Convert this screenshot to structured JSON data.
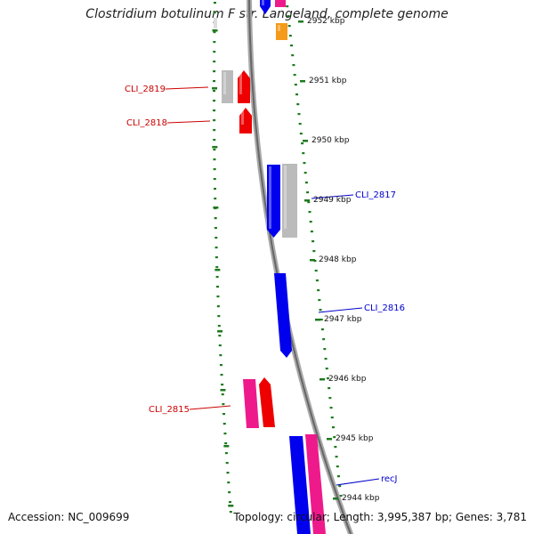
{
  "title": "Clostridium botulinum F str. Langeland, complete genome",
  "footer": {
    "accession": "Accession: NC_009699",
    "summary": "Topology: circular; Length: 3,995,387 bp; Genes: 3,781"
  },
  "colors": {
    "backbone": "#888888",
    "ruler": "#1e7a1e",
    "blue": "#0000ee",
    "red": "#ee0000",
    "pink": "#ee1a8c",
    "gray": "#bbbbbb",
    "orange": "#f59a1a",
    "label_red": "#cc0000",
    "label_blue": "#0000cc"
  },
  "ruler": {
    "ticks": [
      {
        "label": "2952 kbp"
      },
      {
        "label": "2951 kbp"
      },
      {
        "label": "2950 kbp"
      },
      {
        "label": "2949 kbp"
      },
      {
        "label": "2948 kbp"
      },
      {
        "label": "2947 kbp"
      },
      {
        "label": "2946 kbp"
      },
      {
        "label": "2945 kbp"
      },
      {
        "label": "2944 kbp"
      }
    ]
  },
  "gene_labels": [
    {
      "name": "CLI_2819",
      "color": "label_red"
    },
    {
      "name": "CLI_2818",
      "color": "label_red"
    },
    {
      "name": "CLI_2817",
      "color": "label_blue"
    },
    {
      "name": "CLI_2816",
      "color": "label_blue"
    },
    {
      "name": "CLI_2815",
      "color": "label_red"
    },
    {
      "name": "recJ",
      "color": "label_blue"
    }
  ]
}
